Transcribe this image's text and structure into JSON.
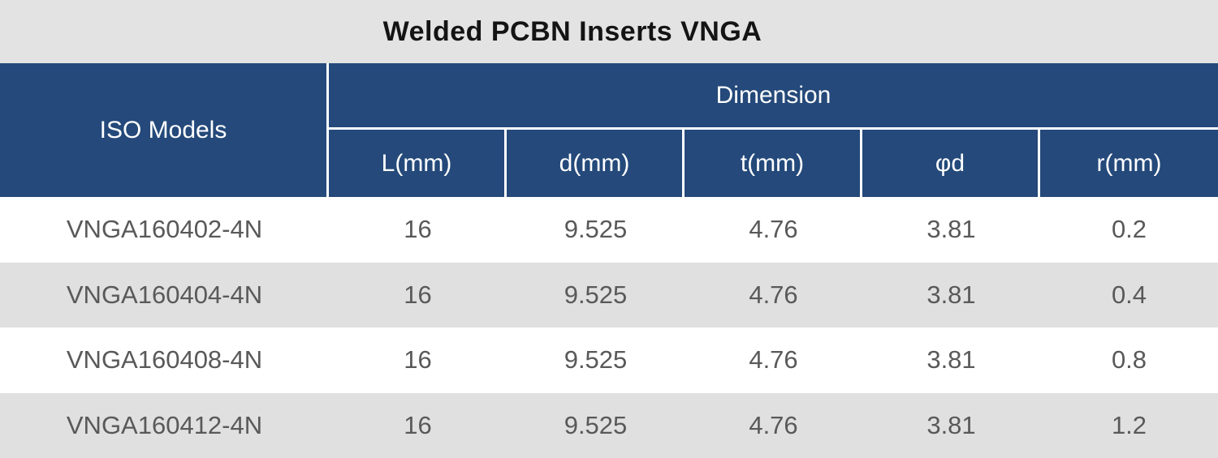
{
  "title": "Welded PCBN Inserts VNGA",
  "table": {
    "iso_header": "ISO Models",
    "dimension_header": "Dimension",
    "sub_headers": [
      "L(mm)",
      "d(mm)",
      "t(mm)",
      "φd",
      "r(mm)"
    ],
    "rows": [
      {
        "model": "VNGA160402-4N",
        "values": [
          "16",
          "9.525",
          "4.76",
          "3.81",
          "0.2"
        ]
      },
      {
        "model": "VNGA160404-4N",
        "values": [
          "16",
          "9.525",
          "4.76",
          "3.81",
          "0.4"
        ]
      },
      {
        "model": "VNGA160408-4N",
        "values": [
          "16",
          "9.525",
          "4.76",
          "3.81",
          "0.8"
        ]
      },
      {
        "model": "VNGA160412-4N",
        "values": [
          "16",
          "9.525",
          "4.76",
          "3.81",
          "1.2"
        ]
      }
    ]
  },
  "colors": {
    "header_background": "#24497a",
    "header_text": "#ffffff",
    "title_background": "#e3e3e3",
    "title_text": "#141414",
    "alt_row_background": "#e0e0e0",
    "data_text": "#595959",
    "divider": "#ffffff"
  }
}
